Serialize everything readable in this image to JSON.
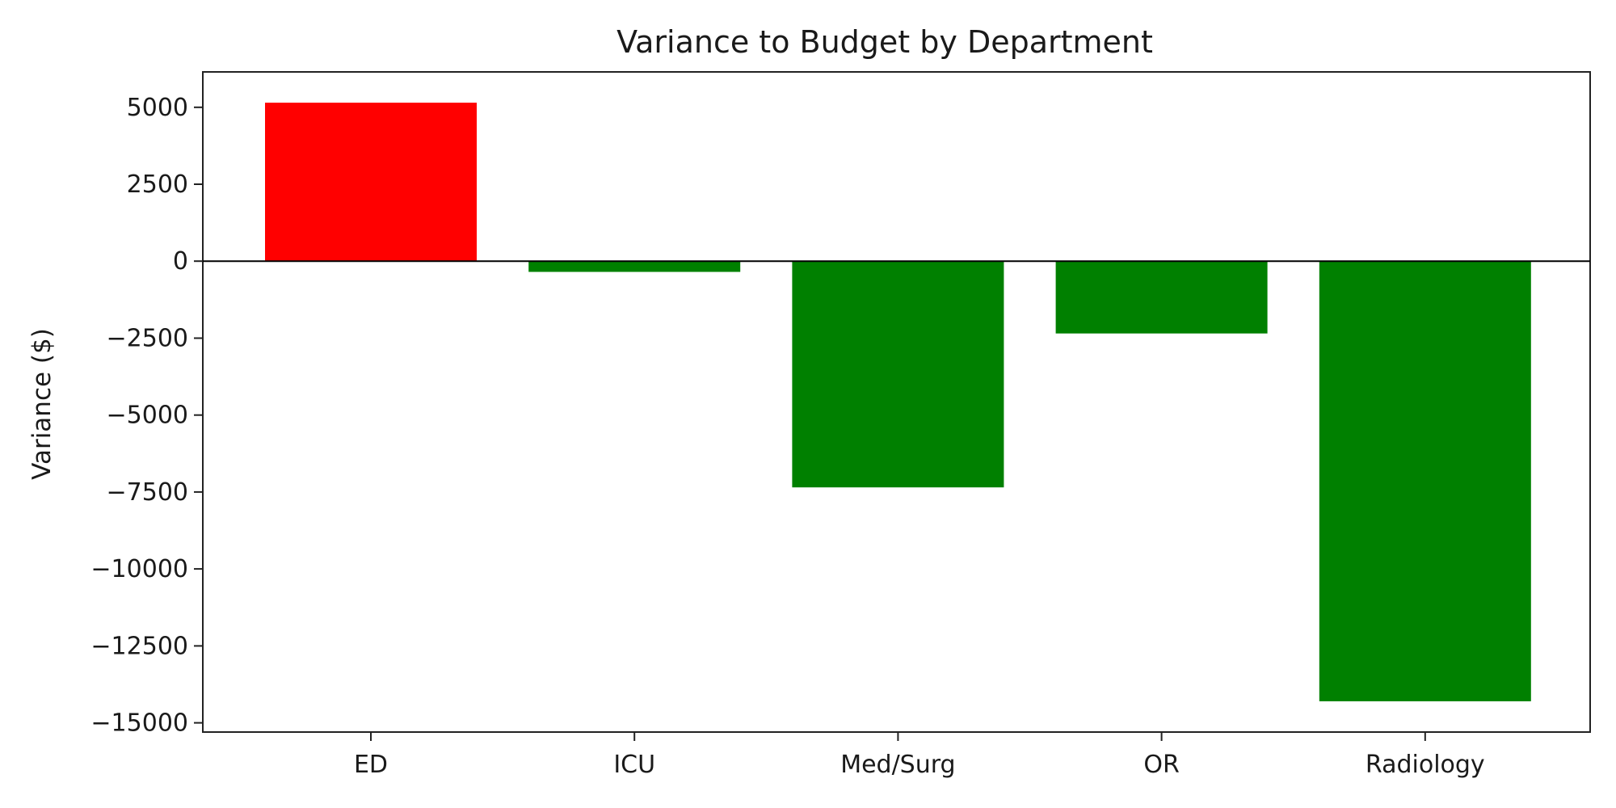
{
  "chart_data": {
    "type": "bar",
    "title": "Variance to Budget by Department",
    "xlabel": "",
    "ylabel": "Variance ($)",
    "categories": [
      "ED",
      "ICU",
      "Med/Surg",
      "OR",
      "Radiology"
    ],
    "values": [
      5150,
      -350,
      -7350,
      -2350,
      -14300
    ],
    "ylim": [
      -15300,
      6150
    ],
    "yticks": [
      5000,
      2500,
      0,
      -2500,
      -5000,
      -7500,
      -10000,
      -12500,
      -15000
    ],
    "ytick_labels": [
      "5000",
      "2500",
      "0",
      "−2500",
      "−5000",
      "−7500",
      "−10000",
      "−12500",
      "−15000"
    ],
    "bar_colors": [
      "#ff0000",
      "#008000",
      "#008000",
      "#008000",
      "#008000"
    ],
    "zero_line": true,
    "grid": false,
    "legend": "none"
  }
}
